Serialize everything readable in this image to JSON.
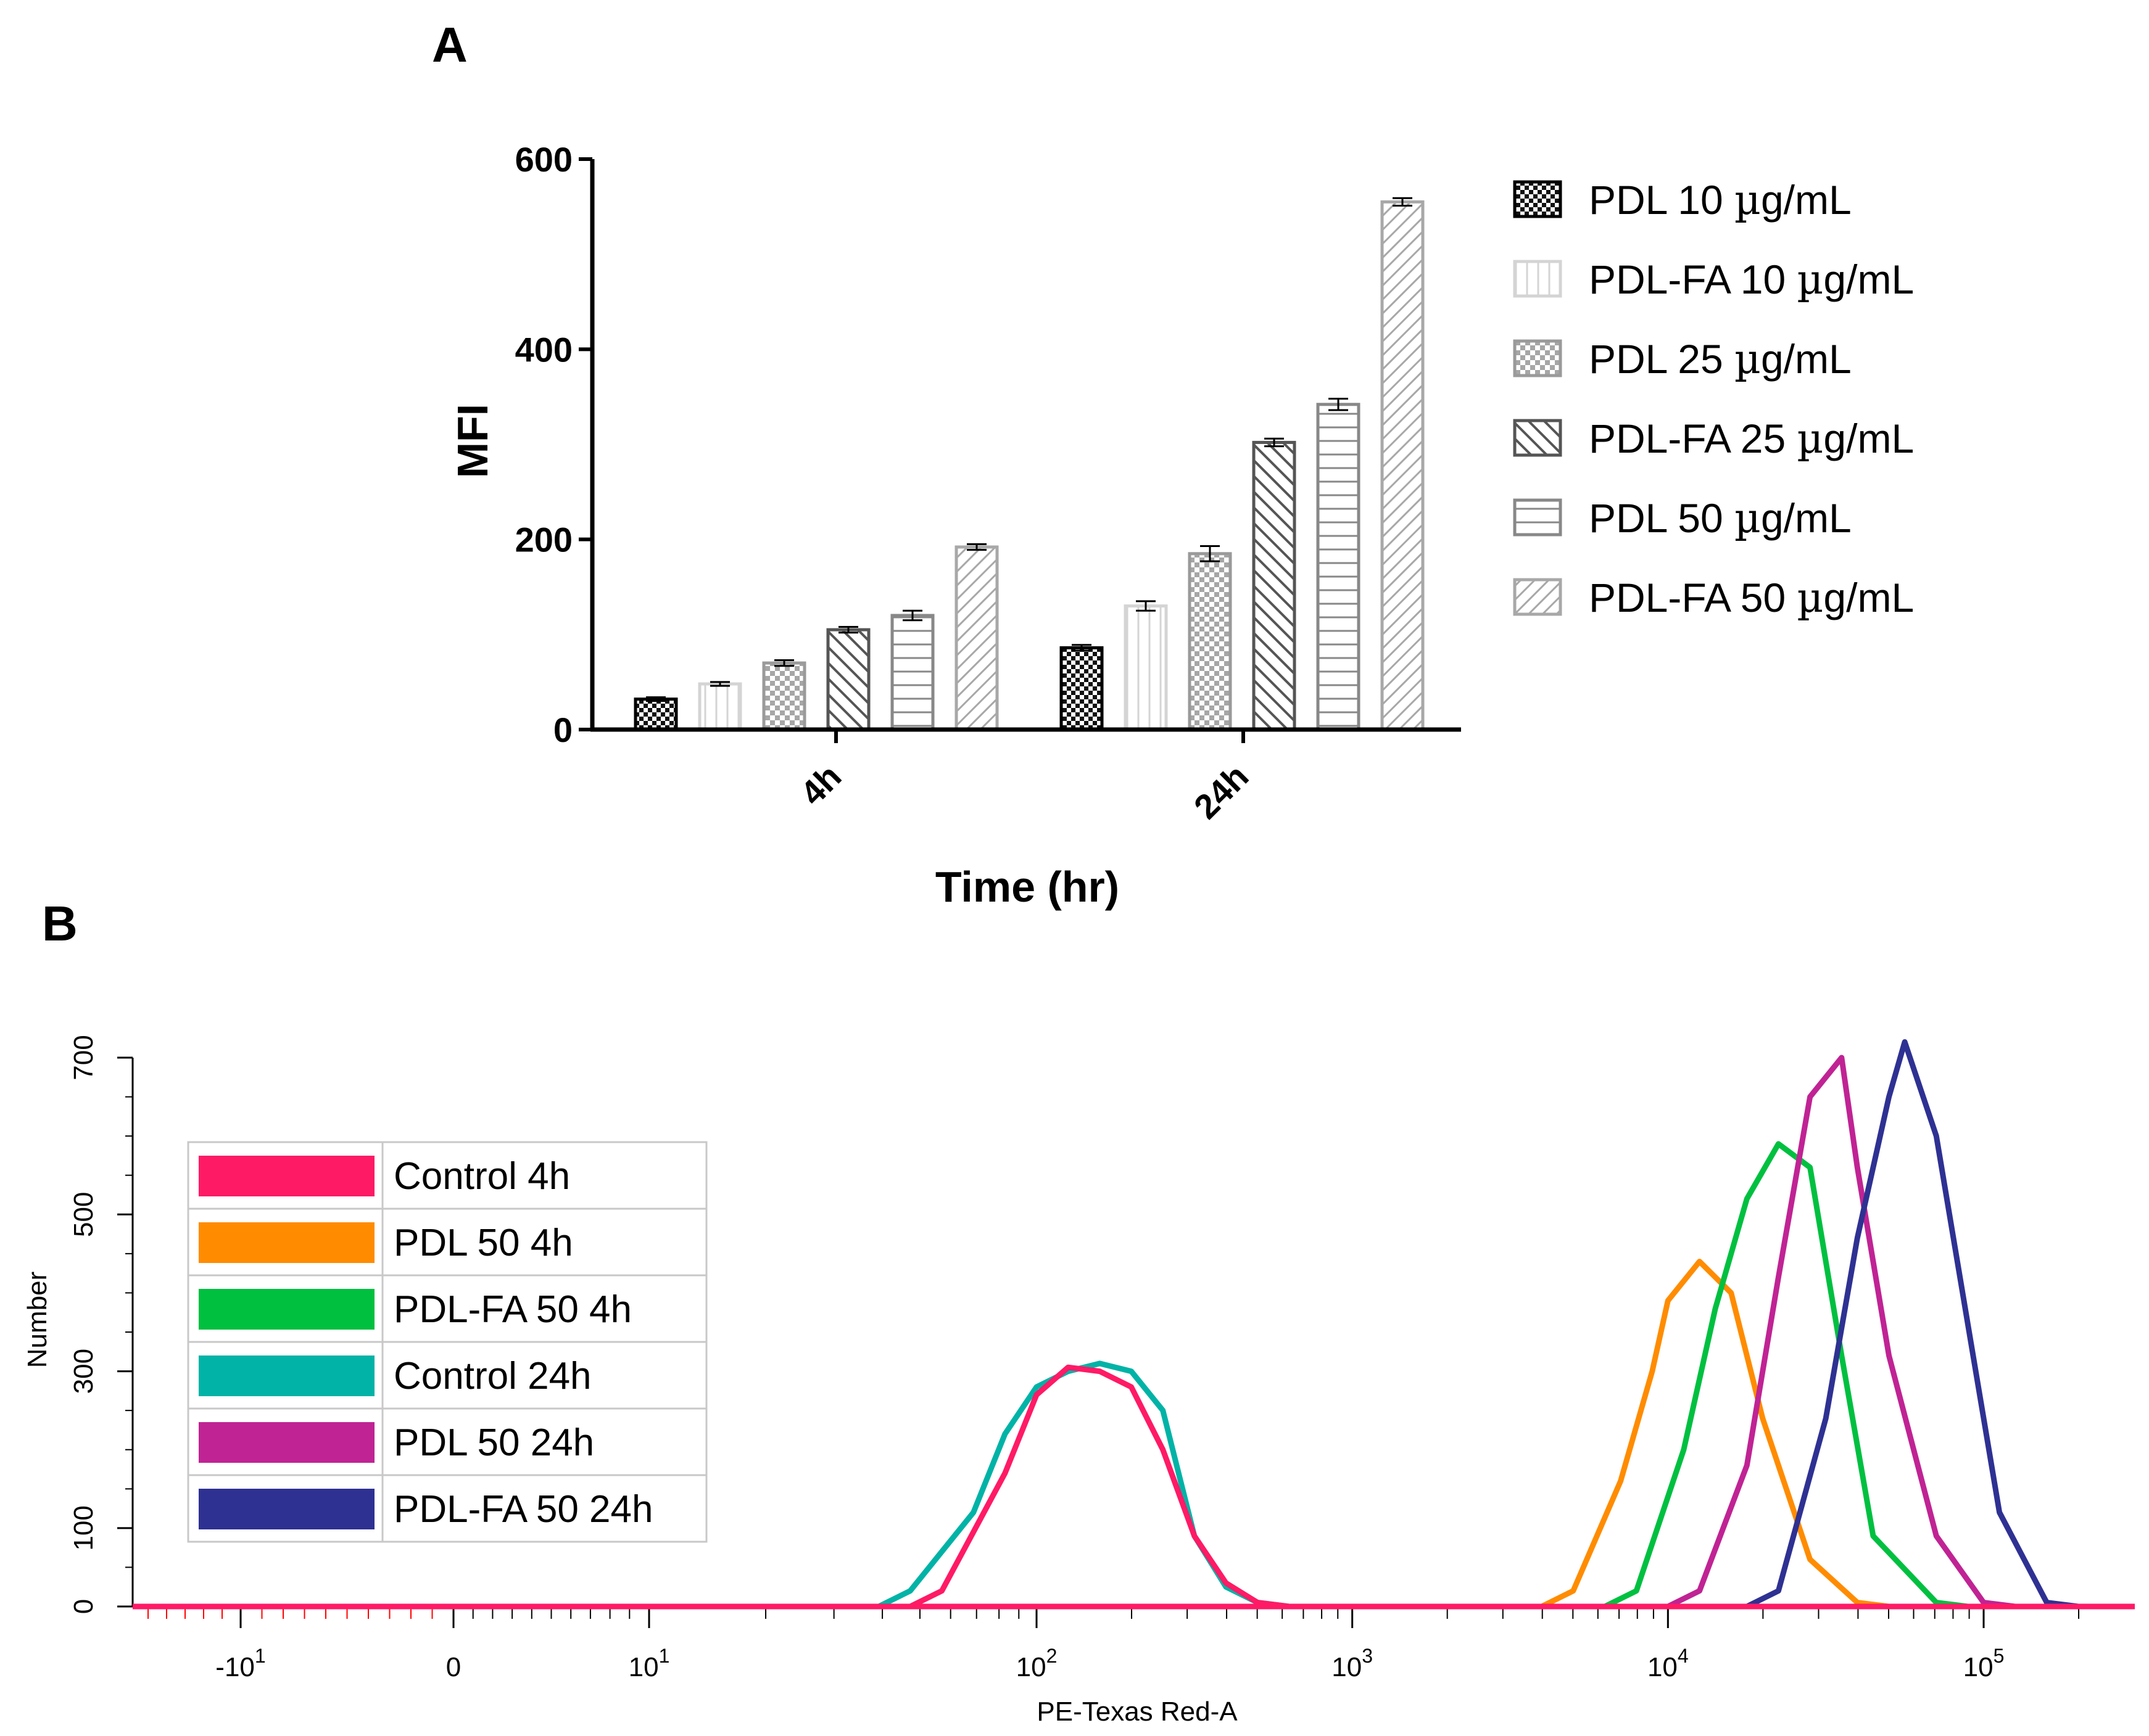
{
  "panels": {
    "a_label": "A",
    "b_label": "B"
  },
  "chart_data": [
    {
      "type": "bar",
      "title": "",
      "xlabel": "Time (hr)",
      "ylabel": "MFI",
      "ylim": [
        0,
        600
      ],
      "yticks": [
        "0",
        "200",
        "400",
        "600"
      ],
      "categories": [
        "4h",
        "24h"
      ],
      "series": [
        {
          "name": "PDL 10 µg/mL",
          "name_prefix": "PDL 10 ",
          "values": [
            32,
            86
          ],
          "errors": [
            2,
            3
          ],
          "pattern": "checker-dark",
          "stroke": "#000000"
        },
        {
          "name": "PDL-FA 10 µg/mL",
          "name_prefix": "PDL-FA 10 ",
          "values": [
            48,
            130
          ],
          "errors": [
            2,
            5
          ],
          "pattern": "vlines",
          "stroke": "#d4d4d4"
        },
        {
          "name": "PDL 25 µg/mL",
          "name_prefix": "PDL 25 ",
          "values": [
            70,
            185
          ],
          "errors": [
            3,
            8
          ],
          "pattern": "checker-light",
          "stroke": "#9a9a9a"
        },
        {
          "name": "PDL-FA 25 µg/mL",
          "name_prefix": "PDL-FA 25 ",
          "values": [
            105,
            302
          ],
          "errors": [
            3,
            4
          ],
          "pattern": "diag-dark",
          "stroke": "#555555"
        },
        {
          "name": "PDL 50 µg/mL",
          "name_prefix": "PDL 50 ",
          "values": [
            120,
            342
          ],
          "errors": [
            5,
            6
          ],
          "pattern": "hlines",
          "stroke": "#888888"
        },
        {
          "name": "PDL-FA 50 µg/mL",
          "name_prefix": "PDL-FA 50 ",
          "values": [
            192,
            555
          ],
          "errors": [
            3,
            4
          ],
          "pattern": "diag-light",
          "stroke": "#a8a8a8"
        }
      ],
      "unit_suffix": "g/mL",
      "legend_position": "right"
    },
    {
      "type": "line",
      "title": "",
      "xlabel": "PE-Texas Red-A",
      "ylabel": "Number",
      "ylim": [
        0,
        700
      ],
      "yticks": [
        "0",
        "100",
        "300",
        "500",
        "700"
      ],
      "xscale": "biexponential",
      "xticks": [
        {
          "base": "-10",
          "exp": "1",
          "value": -10,
          "color": "#ff0000"
        },
        {
          "base": "0",
          "exp": "",
          "value": 0,
          "color": "#000000"
        },
        {
          "base": "10",
          "exp": "1",
          "value": 10,
          "color": "#000000"
        },
        {
          "base": "10",
          "exp": "2",
          "value": 100,
          "color": "#000000"
        },
        {
          "base": "10",
          "exp": "3",
          "value": 1000,
          "color": "#000000"
        },
        {
          "base": "10",
          "exp": "4",
          "value": 10000,
          "color": "#000000"
        },
        {
          "base": "10",
          "exp": "5",
          "value": 100000,
          "color": "#000000"
        }
      ],
      "series": [
        {
          "name": "Control 4h",
          "color": "#ff1a66",
          "x_log10": [
            1.7,
            1.9,
            2.0,
            2.1,
            2.2,
            2.3,
            2.4,
            2.5,
            2.6,
            2.7
          ],
          "y": [
            20,
            170,
            270,
            305,
            300,
            280,
            200,
            90,
            30,
            5
          ]
        },
        {
          "name": "PDL 50 4h",
          "color": "#ff8c00",
          "x_log10": [
            3.7,
            3.85,
            3.95,
            4.0,
            4.1,
            4.2,
            4.3,
            4.45,
            4.6
          ],
          "y": [
            20,
            160,
            300,
            390,
            440,
            400,
            240,
            60,
            5
          ]
        },
        {
          "name": "PDL-FA 50 4h",
          "color": "#00c040",
          "x_log10": [
            3.9,
            4.05,
            4.15,
            4.25,
            4.35,
            4.45,
            4.55,
            4.65,
            4.85
          ],
          "y": [
            20,
            200,
            380,
            520,
            590,
            560,
            320,
            90,
            5
          ]
        },
        {
          "name": "Control 24h",
          "color": "#00b3a6",
          "x_log10": [
            1.6,
            1.8,
            1.9,
            2.0,
            2.1,
            2.2,
            2.3,
            2.4,
            2.5,
            2.6,
            2.7
          ],
          "y": [
            20,
            120,
            220,
            280,
            300,
            310,
            300,
            250,
            90,
            25,
            5
          ]
        },
        {
          "name": "PDL 50 24h",
          "color": "#c02394",
          "x_log10": [
            4.1,
            4.25,
            4.35,
            4.45,
            4.55,
            4.6,
            4.7,
            4.85,
            5.0
          ],
          "y": [
            20,
            180,
            420,
            650,
            700,
            560,
            320,
            90,
            5
          ]
        },
        {
          "name": "PDL-FA 50 24h",
          "color": "#2e3192",
          "x_log10": [
            4.35,
            4.5,
            4.6,
            4.7,
            4.75,
            4.85,
            4.95,
            5.05,
            5.2
          ],
          "y": [
            20,
            240,
            470,
            650,
            720,
            600,
            360,
            120,
            5
          ]
        }
      ],
      "legend_position": "top-left"
    }
  ]
}
